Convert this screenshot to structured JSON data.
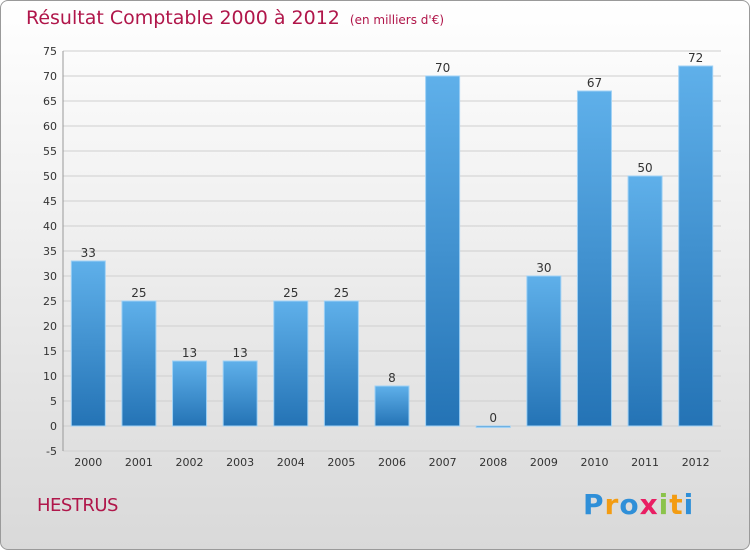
{
  "chart_data": {
    "type": "bar",
    "title": "Résultat Comptable 2000 à 2012",
    "subtitle": "(en milliers d'€)",
    "xlabel": "",
    "ylabel": "",
    "ylim": [
      -5,
      75
    ],
    "ytick_step": 5,
    "grid": true,
    "categories": [
      "2000",
      "2001",
      "2002",
      "2003",
      "2004",
      "2005",
      "2006",
      "2007",
      "2008",
      "2009",
      "2010",
      "2011",
      "2012"
    ],
    "values": [
      33,
      25,
      13,
      13,
      25,
      25,
      8,
      70,
      0,
      30,
      67,
      50,
      72
    ],
    "bar_color": "#3a8fd6"
  },
  "footer": {
    "city": "HESTRUS",
    "logo_letters": [
      "P",
      "r",
      "o",
      "x",
      "i",
      "t",
      "i"
    ]
  },
  "colors": {
    "title": "#b0164a",
    "logo": [
      "#2f8fd8",
      "#f39c12",
      "#2f8fd8",
      "#e91e63",
      "#8bc34a",
      "#f39c12",
      "#2f8fd8"
    ]
  }
}
